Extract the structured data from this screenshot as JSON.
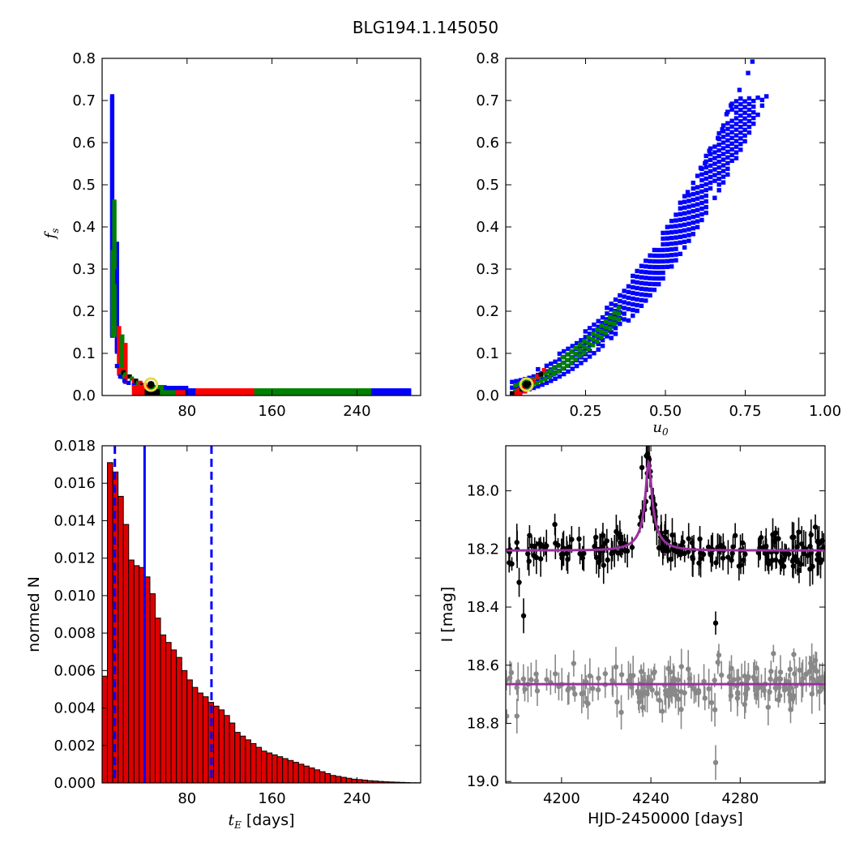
{
  "figure": {
    "title": "BLG194.1.145050",
    "colors": {
      "blue": "#0000ff",
      "green": "#008000",
      "red": "#ff0000",
      "black": "#000000",
      "bar": "#dd0000",
      "model": "#9b30a0",
      "gray": "#888888",
      "marker_ring": "#e8d84a"
    }
  },
  "chart_data": [
    {
      "id": "fs_vs_tE",
      "type": "heatmap",
      "ylabel_math": "f",
      "ylabel_sub": "s",
      "xlim": [
        0,
        300
      ],
      "ylim": [
        0,
        0.8
      ],
      "xticks": [
        80,
        160,
        240
      ],
      "xtick_labels": [
        "80",
        "160",
        "240"
      ],
      "yticks": [
        0.0,
        0.1,
        0.2,
        0.3,
        0.4,
        0.5,
        0.6,
        0.7,
        0.8
      ],
      "ytick_labels": [
        "0.0",
        "0.1",
        "0.2",
        "0.3",
        "0.4",
        "0.5",
        "0.6",
        "0.7",
        "0.8"
      ],
      "regions": [
        {
          "level": "blue",
          "cells": [
            [
              8,
              0.71
            ],
            [
              8,
              0.66
            ],
            [
              8,
              0.6
            ],
            [
              8,
              0.54
            ],
            [
              8,
              0.48
            ],
            [
              8,
              0.43
            ],
            [
              8,
              0.38
            ],
            [
              8,
              0.32
            ],
            [
              12,
              0.25
            ],
            [
              12,
              0.2
            ],
            [
              14,
              0.15
            ],
            [
              18,
              0.1
            ],
            [
              22,
              0.06
            ],
            [
              28,
              0.04
            ],
            [
              40,
              0.02
            ],
            [
              70,
              0.01
            ],
            [
              150,
              0.003
            ],
            [
              250,
              0.002
            ],
            [
              290,
              0.002
            ]
          ]
        },
        {
          "level": "green",
          "cells": [
            [
              8,
              0.44
            ],
            [
              8,
              0.4
            ],
            [
              8,
              0.3
            ],
            [
              10,
              0.24
            ],
            [
              10,
              0.19
            ],
            [
              12,
              0.16
            ],
            [
              18,
              0.08
            ],
            [
              25,
              0.05
            ],
            [
              35,
              0.03
            ],
            [
              80,
              0.008
            ],
            [
              200,
              0.003
            ],
            [
              240,
              0.003
            ]
          ]
        },
        {
          "level": "red",
          "cells": [
            [
              14,
              0.14
            ],
            [
              14,
              0.1
            ],
            [
              18,
              0.07
            ],
            [
              22,
              0.05
            ],
            [
              30,
              0.03
            ],
            [
              50,
              0.012
            ],
            [
              70,
              0.008
            ],
            [
              110,
              0.005
            ],
            [
              130,
              0.004
            ]
          ]
        },
        {
          "level": "black",
          "cells": [
            [
              20,
              0.06
            ],
            [
              26,
              0.045
            ],
            [
              32,
              0.035
            ]
          ]
        }
      ],
      "best_fit": {
        "x": 46,
        "y": 0.026
      }
    },
    {
      "id": "fs_vs_u0",
      "type": "heatmap",
      "xlabel_math": "u",
      "xlabel_sub": "0",
      "xlim": [
        0,
        1.0
      ],
      "ylim": [
        0,
        0.8
      ],
      "xticks": [
        0.25,
        0.5,
        0.75,
        1.0
      ],
      "xtick_labels": [
        "0.25",
        "0.50",
        "0.75",
        "1.00"
      ],
      "yticks": [
        0.0,
        0.1,
        0.2,
        0.3,
        0.4,
        0.5,
        0.6,
        0.7,
        0.8
      ],
      "ytick_labels": [
        "0.0",
        "0.1",
        "0.2",
        "0.3",
        "0.4",
        "0.5",
        "0.6",
        "0.7",
        "0.8"
      ],
      "best_fit": {
        "x": 0.065,
        "y": 0.026
      }
    },
    {
      "id": "tE_histogram",
      "type": "bar",
      "xlabel_math": "t",
      "xlabel_sub": "E",
      "xlabel_text": " [days]",
      "ylabel": "normed N",
      "xlim": [
        0,
        300
      ],
      "ylim": [
        0,
        0.018
      ],
      "bin_width": 5,
      "bin_start": 0,
      "values": [
        0.0057,
        0.0171,
        0.0166,
        0.0153,
        0.0138,
        0.0119,
        0.0116,
        0.0115,
        0.011,
        0.0101,
        0.0088,
        0.0079,
        0.0075,
        0.0071,
        0.0067,
        0.006,
        0.0055,
        0.0051,
        0.0048,
        0.0046,
        0.0043,
        0.0041,
        0.0039,
        0.0036,
        0.0032,
        0.0027,
        0.0025,
        0.0023,
        0.0021,
        0.0019,
        0.0017,
        0.0016,
        0.0015,
        0.0014,
        0.0013,
        0.0012,
        0.0011,
        0.001,
        0.0009,
        0.0008,
        0.0007,
        0.0006,
        0.0005,
        0.0004,
        0.00035,
        0.0003,
        0.00025,
        0.0002,
        0.00018,
        0.00015,
        0.00012,
        0.0001,
        8e-05,
        6e-05,
        5e-05,
        4e-05,
        3e-05,
        2e-05,
        1e-05,
        1e-05
      ],
      "xticks": [
        80,
        160,
        240
      ],
      "xtick_labels": [
        "80",
        "160",
        "240"
      ],
      "yticks": [
        0.0,
        0.002,
        0.004,
        0.006,
        0.008,
        0.01,
        0.012,
        0.014,
        0.016,
        0.018
      ],
      "ytick_labels": [
        "0.000",
        "0.002",
        "0.004",
        "0.006",
        "0.008",
        "0.010",
        "0.012",
        "0.014",
        "0.016",
        "0.018"
      ],
      "median_line": 40,
      "interval_lines": [
        12,
        103
      ]
    },
    {
      "id": "lightcurve",
      "type": "scatter",
      "xlabel": "HJD-2450000 [days]",
      "ylabel": "I [mag]",
      "xlim": [
        4175,
        4318
      ],
      "ylim": [
        19.005,
        17.845
      ],
      "y_inverted": true,
      "xticks": [
        4200,
        4240,
        4280
      ],
      "xtick_labels": [
        "4200",
        "4240",
        "4280"
      ],
      "yticks": [
        18.0,
        18.2,
        18.4,
        18.6,
        18.8,
        19.0
      ],
      "ytick_labels": [
        "18.0",
        "18.2",
        "18.4",
        "18.6",
        "18.8",
        "19.0"
      ],
      "model": {
        "t0": 4239,
        "tE_peak": 3.2,
        "baseline": 18.205,
        "peak_mag": 17.9
      },
      "baseline_model_gray": 18.665
    }
  ]
}
